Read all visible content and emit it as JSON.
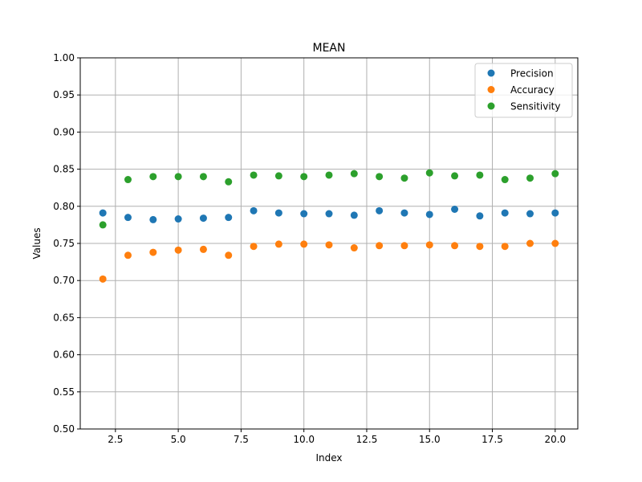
{
  "chart_data": {
    "type": "scatter",
    "title": "MEAN",
    "xlabel": "Index",
    "ylabel": "Values",
    "xlim": [
      1.1,
      20.9
    ],
    "ylim": [
      0.5,
      1.0
    ],
    "x_ticks": [
      2.5,
      5.0,
      7.5,
      10.0,
      12.5,
      15.0,
      17.5,
      20.0
    ],
    "x_tick_labels": [
      "2.5",
      "5.0",
      "7.5",
      "10.0",
      "12.5",
      "15.0",
      "17.5",
      "20.0"
    ],
    "y_ticks": [
      0.5,
      0.55,
      0.6,
      0.65,
      0.7,
      0.75,
      0.8,
      0.85,
      0.9,
      0.95,
      1.0
    ],
    "y_tick_labels": [
      "0.50",
      "0.55",
      "0.60",
      "0.65",
      "0.70",
      "0.75",
      "0.80",
      "0.85",
      "0.90",
      "0.95",
      "1.00"
    ],
    "grid": true,
    "legend_position": "top-right",
    "x": [
      2,
      3,
      4,
      5,
      6,
      7,
      8,
      9,
      10,
      11,
      12,
      13,
      14,
      15,
      16,
      17,
      18,
      19,
      20
    ],
    "series": [
      {
        "name": "Precision",
        "color": "#1f77b4",
        "values": [
          0.791,
          0.785,
          0.782,
          0.783,
          0.784,
          0.785,
          0.794,
          0.791,
          0.79,
          0.79,
          0.788,
          0.794,
          0.791,
          0.789,
          0.796,
          0.787,
          0.791,
          0.79,
          0.791
        ]
      },
      {
        "name": "Accuracy",
        "color": "#ff7f0e",
        "values": [
          0.702,
          0.734,
          0.738,
          0.741,
          0.742,
          0.734,
          0.746,
          0.749,
          0.749,
          0.748,
          0.744,
          0.747,
          0.747,
          0.748,
          0.747,
          0.746,
          0.746,
          0.75,
          0.75
        ]
      },
      {
        "name": "Sensitivity",
        "color": "#2ca02c",
        "values": [
          0.775,
          0.836,
          0.84,
          0.84,
          0.84,
          0.833,
          0.842,
          0.841,
          0.84,
          0.842,
          0.844,
          0.84,
          0.838,
          0.845,
          0.841,
          0.842,
          0.836,
          0.838,
          0.844
        ]
      }
    ]
  }
}
